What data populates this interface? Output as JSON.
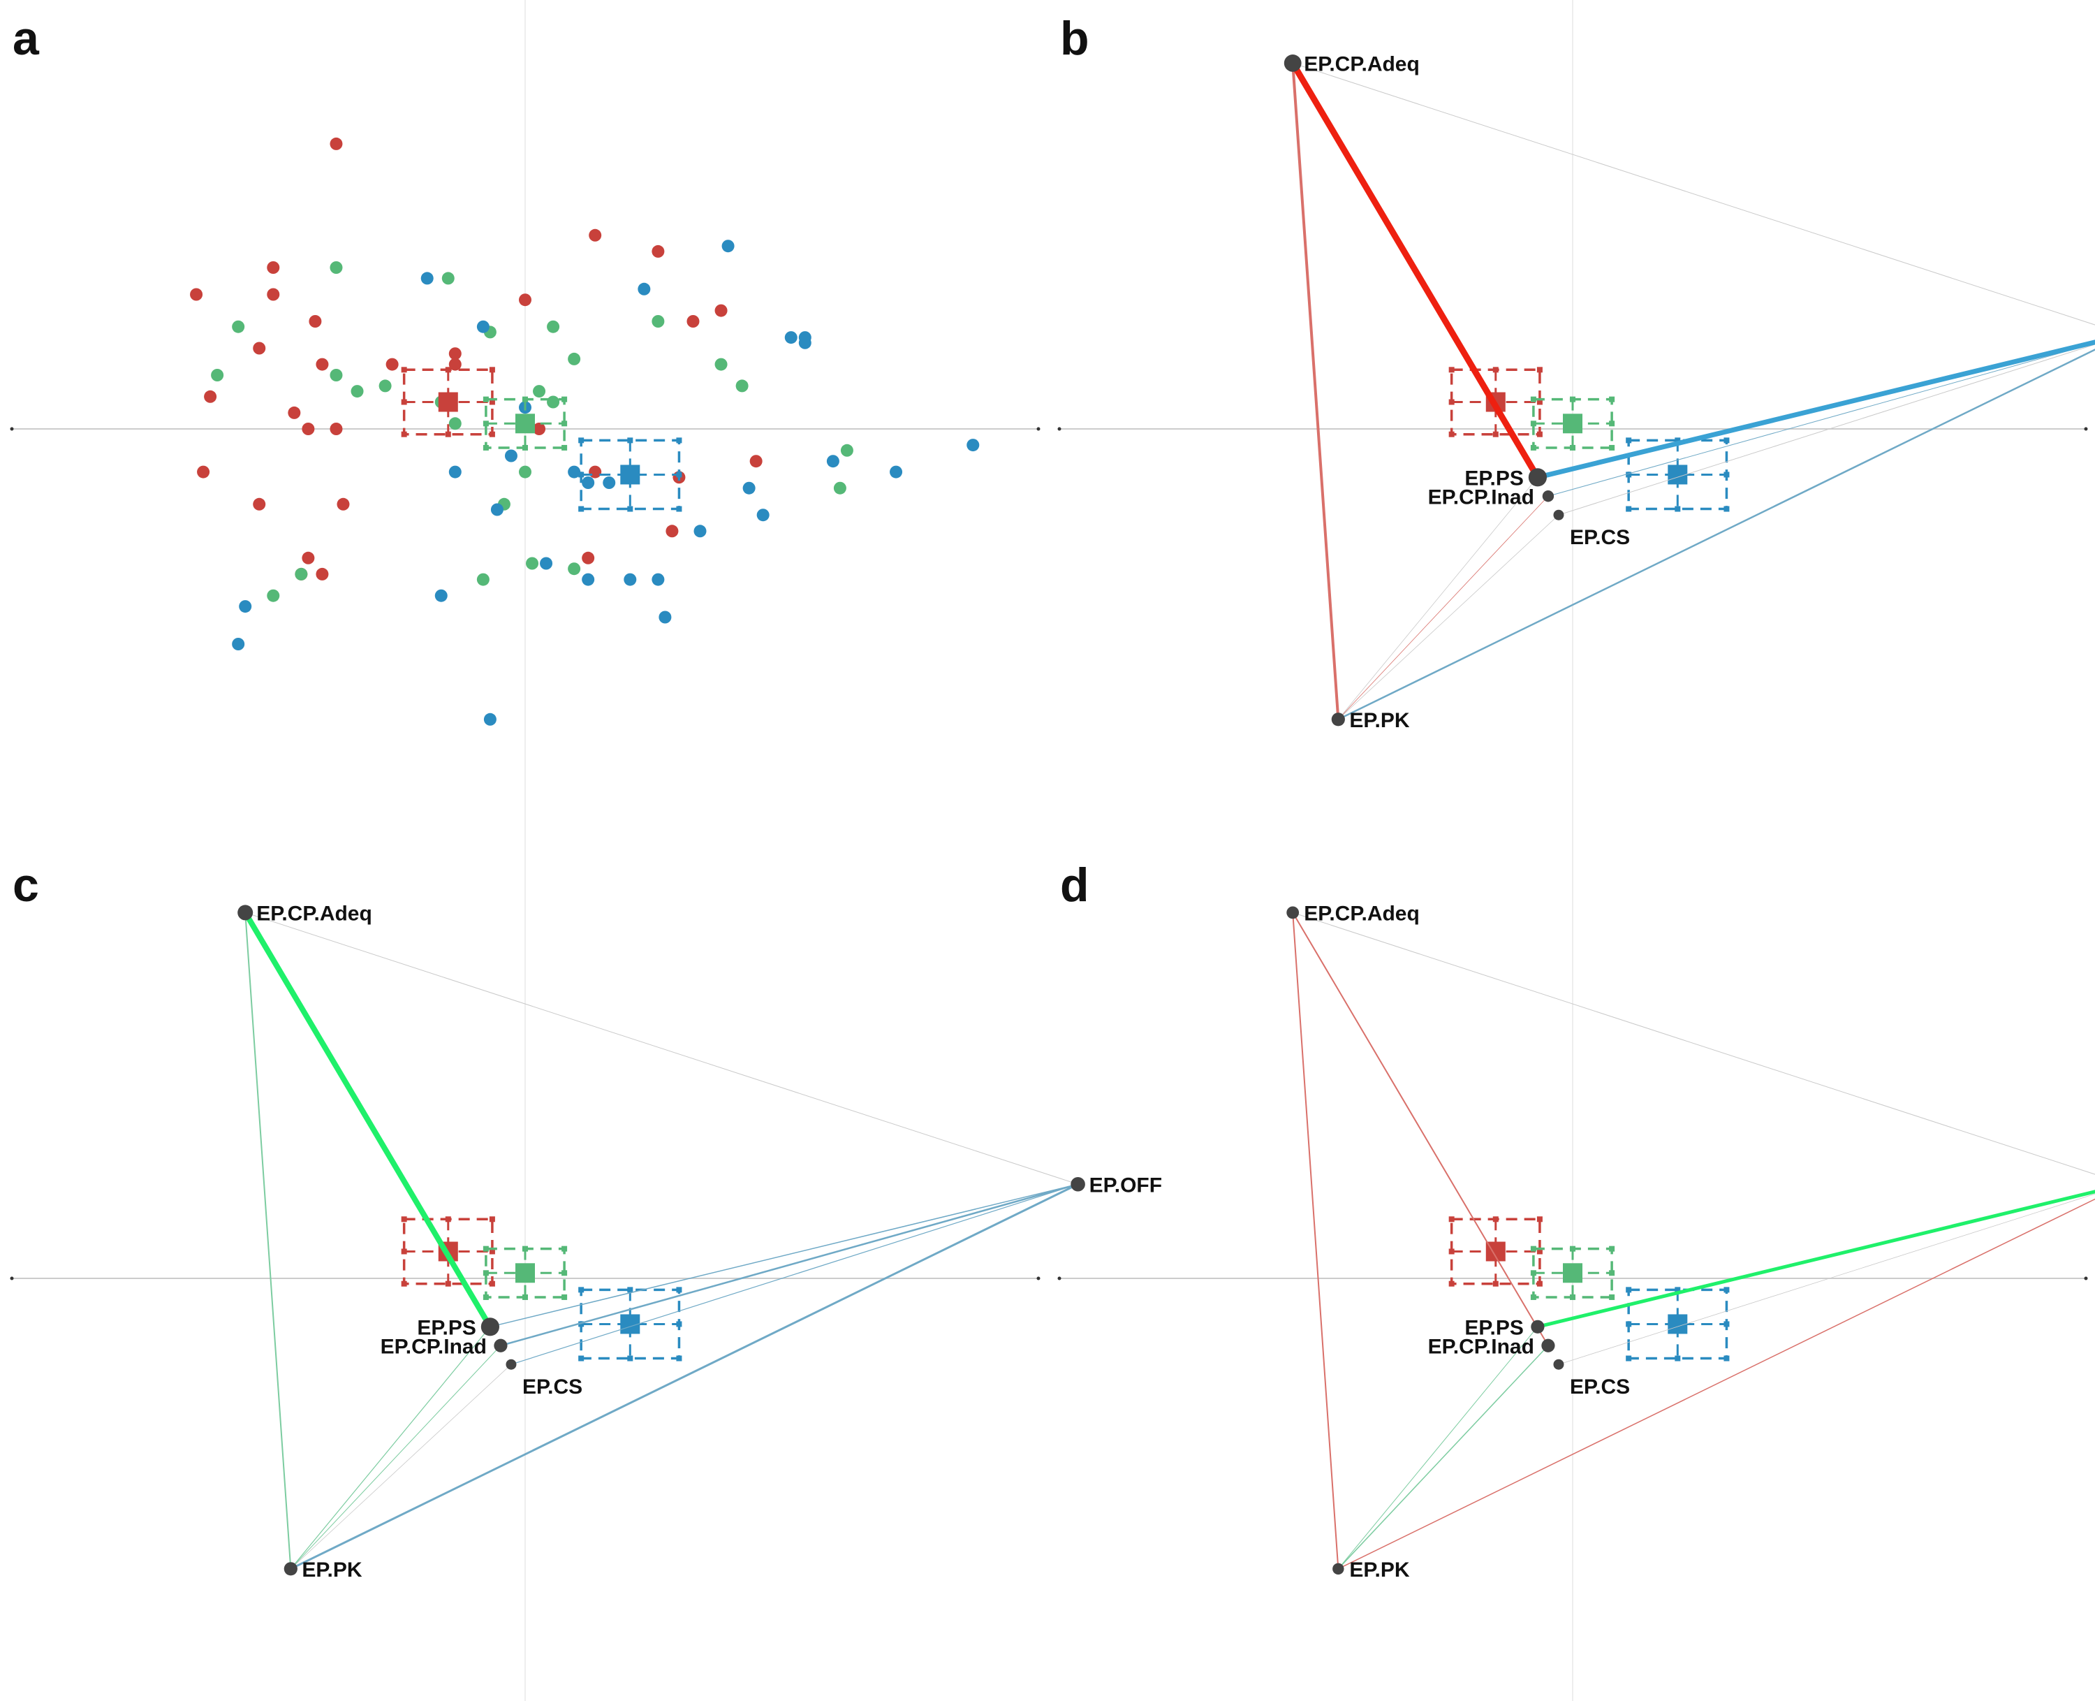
{
  "chart_data": {
    "type": "scatter",
    "description_free": true,
    "colors": {
      "red": "#c8413b",
      "green": "#55b877",
      "blue": "#2a8bc0",
      "node": "#444444",
      "axis": "#cccccc",
      "edge_red_strong": "#ee2010",
      "edge_red_soft": "#d9706a",
      "edge_blue_strong": "#3aa2d4",
      "edge_blue_soft": "#6fa9c6",
      "edge_green_strong": "#1ff06a",
      "edge_green_soft": "#7ccca0",
      "edge_faint": "#c9c9c9"
    },
    "axis_range": {
      "x": [
        -1,
        1
      ],
      "y": [
        -1,
        1
      ]
    },
    "panels": [
      {
        "letter": "a",
        "mode": "points"
      },
      {
        "letter": "b",
        "mode": "network"
      },
      {
        "letter": "c",
        "mode": "network"
      },
      {
        "letter": "d",
        "mode": "network"
      }
    ],
    "groups": [
      {
        "color": "red",
        "centroid": [
          -0.11,
          0.05
        ],
        "spread": [
          0.09,
          0.08
        ]
      },
      {
        "color": "green",
        "centroid": [
          0.0,
          0.01
        ],
        "spread": [
          0.08,
          0.06
        ]
      },
      {
        "color": "blue",
        "centroid": [
          0.15,
          -0.085
        ],
        "spread": [
          0.1,
          0.085
        ]
      }
    ],
    "points": {
      "red": [
        [
          -0.27,
          0.53
        ],
        [
          -0.36,
          0.25
        ],
        [
          -0.33,
          0.03
        ],
        [
          -0.47,
          0.25
        ],
        [
          -0.45,
          0.06
        ],
        [
          -0.46,
          -0.08
        ],
        [
          -0.38,
          0.15
        ],
        [
          -0.29,
          0.12
        ],
        [
          -0.3,
          0.2
        ],
        [
          -0.19,
          0.12
        ],
        [
          -0.1,
          0.14
        ],
        [
          0.0,
          0.24
        ],
        [
          0.1,
          0.36
        ],
        [
          0.19,
          0.33
        ],
        [
          0.24,
          0.2
        ],
        [
          0.28,
          0.22
        ],
        [
          0.33,
          -0.06
        ],
        [
          0.22,
          -0.09
        ],
        [
          0.1,
          -0.08
        ],
        [
          0.21,
          -0.19
        ],
        [
          -0.26,
          -0.14
        ],
        [
          -0.38,
          -0.14
        ],
        [
          -0.29,
          -0.27
        ],
        [
          -0.31,
          -0.24
        ],
        [
          -0.32,
          -0.27
        ],
        [
          0.09,
          -0.24
        ],
        [
          -0.31,
          0.0
        ],
        [
          -0.27,
          0.0
        ],
        [
          0.02,
          0.0
        ],
        [
          -0.36,
          0.3
        ],
        [
          -0.1,
          0.12
        ]
      ],
      "green": [
        [
          -0.27,
          0.3
        ],
        [
          -0.41,
          0.19
        ],
        [
          -0.44,
          0.1
        ],
        [
          -0.27,
          0.1
        ],
        [
          -0.2,
          0.08
        ],
        [
          -0.11,
          0.28
        ],
        [
          -0.05,
          0.18
        ],
        [
          -0.1,
          0.01
        ],
        [
          0.04,
          0.19
        ],
        [
          0.07,
          0.13
        ],
        [
          0.19,
          0.2
        ],
        [
          0.28,
          0.12
        ],
        [
          0.31,
          0.08
        ],
        [
          0.46,
          -0.04
        ],
        [
          0.45,
          -0.11
        ],
        [
          0.15,
          -0.08
        ],
        [
          0.0,
          -0.08
        ],
        [
          -0.03,
          -0.14
        ],
        [
          0.01,
          -0.25
        ],
        [
          0.07,
          -0.26
        ],
        [
          -0.06,
          -0.28
        ],
        [
          -0.32,
          -0.27
        ],
        [
          -0.36,
          -0.31
        ],
        [
          -0.24,
          0.07
        ],
        [
          0.04,
          0.05
        ],
        [
          0.02,
          0.07
        ],
        [
          -0.12,
          0.05
        ]
      ],
      "blue": [
        [
          0.29,
          0.34
        ],
        [
          0.17,
          0.26
        ],
        [
          -0.14,
          0.28
        ],
        [
          -0.06,
          0.19
        ],
        [
          0.38,
          0.17
        ],
        [
          0.4,
          0.16
        ],
        [
          0.4,
          0.17
        ],
        [
          0.64,
          -0.03
        ],
        [
          0.44,
          -0.06
        ],
        [
          0.53,
          -0.08
        ],
        [
          0.32,
          -0.11
        ],
        [
          0.34,
          -0.16
        ],
        [
          0.25,
          -0.19
        ],
        [
          -0.1,
          -0.08
        ],
        [
          -0.02,
          -0.05
        ],
        [
          0.09,
          -0.1
        ],
        [
          -0.04,
          -0.15
        ],
        [
          0.03,
          -0.25
        ],
        [
          0.09,
          -0.28
        ],
        [
          0.15,
          -0.28
        ],
        [
          0.19,
          -0.28
        ],
        [
          0.2,
          -0.35
        ],
        [
          -0.12,
          -0.31
        ],
        [
          -0.4,
          -0.33
        ],
        [
          -0.41,
          -0.4
        ],
        [
          -0.05,
          -0.54
        ],
        [
          0.0,
          0.04
        ],
        [
          0.12,
          -0.1
        ],
        [
          0.07,
          -0.08
        ]
      ]
    },
    "nodes": [
      {
        "id": "adeq",
        "label": "EP.CP.Adeq",
        "x": -0.4,
        "y": 0.68,
        "anchor": "right"
      },
      {
        "id": "off",
        "label": "EP.OFF",
        "x": 0.79,
        "y": 0.175,
        "anchor": "right"
      },
      {
        "id": "ps",
        "label": "EP.PS",
        "x": -0.05,
        "y": -0.09,
        "anchor": "left"
      },
      {
        "id": "inad",
        "label": "EP.CP.Inad",
        "x": -0.035,
        "y": -0.125,
        "anchor": "left"
      },
      {
        "id": "cs",
        "label": "EP.CS",
        "x": -0.02,
        "y": -0.16,
        "anchor": "below-right"
      },
      {
        "id": "pk",
        "label": "EP.PK",
        "x": -0.335,
        "y": -0.54,
        "anchor": "right"
      }
    ],
    "networks": {
      "b": {
        "node_size": {
          "adeq": 1.2,
          "off": 1.1,
          "ps": 1.3,
          "inad": 0.6,
          "cs": 0.5,
          "pk": 0.8
        },
        "edges": [
          {
            "from": "adeq",
            "to": "ps",
            "color": "edge_red_strong",
            "weight": 9
          },
          {
            "from": "ps",
            "to": "off",
            "color": "edge_blue_strong",
            "weight": 7
          },
          {
            "from": "adeq",
            "to": "pk",
            "color": "edge_red_soft",
            "weight": 4
          },
          {
            "from": "pk",
            "to": "off",
            "color": "edge_blue_soft",
            "weight": 2.5
          },
          {
            "from": "adeq",
            "to": "off",
            "color": "edge_faint",
            "weight": 1
          },
          {
            "from": "inad",
            "to": "off",
            "color": "edge_blue_soft",
            "weight": 1
          },
          {
            "from": "cs",
            "to": "off",
            "color": "edge_faint",
            "weight": 1
          },
          {
            "from": "pk",
            "to": "inad",
            "color": "edge_red_soft",
            "weight": 0.8
          },
          {
            "from": "pk",
            "to": "cs",
            "color": "edge_faint",
            "weight": 0.8
          },
          {
            "from": "pk",
            "to": "ps",
            "color": "edge_faint",
            "weight": 0.8
          }
        ]
      },
      "c": {
        "node_size": {
          "adeq": 1.0,
          "off": 0.9,
          "ps": 1.3,
          "inad": 0.8,
          "cs": 0.5,
          "pk": 0.8
        },
        "edges": [
          {
            "from": "adeq",
            "to": "ps",
            "color": "edge_green_strong",
            "weight": 8
          },
          {
            "from": "adeq",
            "to": "pk",
            "color": "edge_green_soft",
            "weight": 2
          },
          {
            "from": "pk",
            "to": "off",
            "color": "edge_blue_soft",
            "weight": 3
          },
          {
            "from": "ps",
            "to": "off",
            "color": "edge_blue_soft",
            "weight": 1.5
          },
          {
            "from": "inad",
            "to": "off",
            "color": "edge_blue_soft",
            "weight": 2.5
          },
          {
            "from": "cs",
            "to": "off",
            "color": "edge_blue_soft",
            "weight": 1.2
          },
          {
            "from": "adeq",
            "to": "off",
            "color": "edge_faint",
            "weight": 1
          },
          {
            "from": "pk",
            "to": "ps",
            "color": "edge_green_soft",
            "weight": 1.2
          },
          {
            "from": "pk",
            "to": "inad",
            "color": "edge_green_soft",
            "weight": 1
          },
          {
            "from": "pk",
            "to": "cs",
            "color": "edge_faint",
            "weight": 0.8
          }
        ]
      },
      "d": {
        "node_size": {
          "adeq": 0.7,
          "off": 0.8,
          "ps": 0.8,
          "inad": 0.8,
          "cs": 0.5,
          "pk": 0.6
        },
        "edges": [
          {
            "from": "ps",
            "to": "off",
            "color": "edge_green_strong",
            "weight": 5
          },
          {
            "from": "adeq",
            "to": "pk",
            "color": "edge_red_soft",
            "weight": 2
          },
          {
            "from": "adeq",
            "to": "inad",
            "color": "edge_red_soft",
            "weight": 2
          },
          {
            "from": "pk",
            "to": "off",
            "color": "edge_red_soft",
            "weight": 1.5
          },
          {
            "from": "adeq",
            "to": "off",
            "color": "edge_faint",
            "weight": 1
          },
          {
            "from": "pk",
            "to": "inad",
            "color": "edge_green_soft",
            "weight": 1.5
          },
          {
            "from": "pk",
            "to": "ps",
            "color": "edge_green_soft",
            "weight": 1
          },
          {
            "from": "cs",
            "to": "off",
            "color": "edge_faint",
            "weight": 0.8
          }
        ]
      }
    }
  }
}
